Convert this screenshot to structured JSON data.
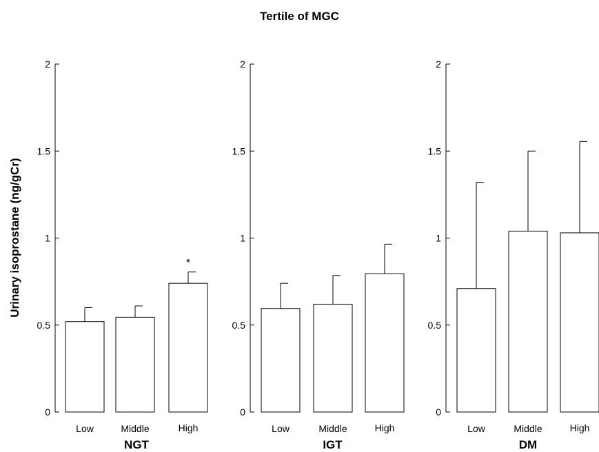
{
  "chart_data": {
    "type": "bar",
    "title": "Tertile of MGC",
    "ylabel": "Urinary isoprostane (ng/gCr)",
    "ylim": [
      0,
      2
    ],
    "yticks": [
      "0",
      "0.5",
      "1",
      "1.5",
      "2"
    ],
    "yticks_values": [
      0,
      0.5,
      1,
      1.5,
      2
    ],
    "categories": [
      "Low",
      "Middle",
      "High"
    ],
    "grid": false,
    "panels": [
      {
        "group": "NGT",
        "values": [
          0.52,
          0.545,
          0.74
        ],
        "error_upper": [
          0.6,
          0.61,
          0.805
        ],
        "annotations": [
          "",
          "",
          "*"
        ]
      },
      {
        "group": "IGT",
        "values": [
          0.595,
          0.62,
          0.795
        ],
        "error_upper": [
          0.74,
          0.785,
          0.965
        ],
        "annotations": [
          "",
          "",
          ""
        ]
      },
      {
        "group": "DM",
        "values": [
          0.71,
          1.04,
          1.03
        ],
        "error_upper": [
          1.32,
          1.5,
          1.555
        ],
        "annotations": [
          "",
          "",
          ""
        ]
      }
    ],
    "colors": {
      "bar_fill": "#ffffff",
      "bar_stroke": "#000000"
    }
  }
}
